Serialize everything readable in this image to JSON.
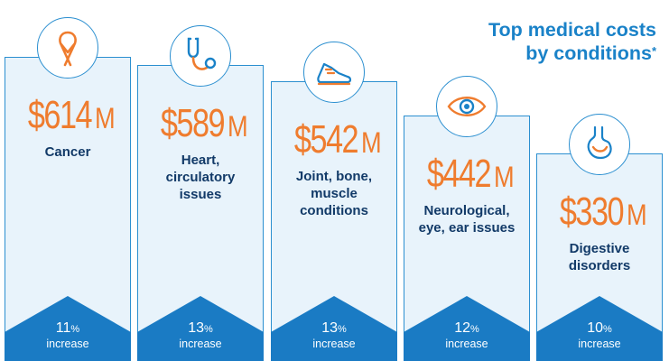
{
  "title": {
    "line1": "Top medical costs",
    "line2": "by conditions",
    "footnote_mark": "*"
  },
  "colors": {
    "accent_blue": "#1a82c8",
    "amount_orange": "#ef7c2e",
    "label_navy": "#123a68",
    "panel_fill": "#e8f3fb",
    "footer_blue": "#1a7bc4"
  },
  "chart_data": {
    "type": "bar",
    "title": "Top medical costs by conditions*",
    "unit": "M",
    "categories": [
      "Cancer",
      "Heart, circulatory issues",
      "Joint, bone, muscle conditions",
      "Neurological, eye, ear issues",
      "Digestive disorders"
    ],
    "values": [
      614,
      589,
      542,
      442,
      330
    ],
    "value_labels": [
      "$614",
      "$589",
      "$542",
      "$442",
      "$330"
    ],
    "increase_percent": [
      11,
      13,
      13,
      12,
      10
    ],
    "increase_label": "increase",
    "icons": [
      "awareness-ribbon-icon",
      "stethoscope-icon",
      "sneaker-icon",
      "eye-icon",
      "stomach-icon"
    ],
    "label_lines": [
      [
        "Cancer"
      ],
      [
        "Heart,",
        "circulatory",
        "issues"
      ],
      [
        "Joint, bone,",
        "muscle",
        "conditions"
      ],
      [
        "Neurological,",
        "eye, ear issues"
      ],
      [
        "Digestive",
        "disorders"
      ]
    ]
  }
}
